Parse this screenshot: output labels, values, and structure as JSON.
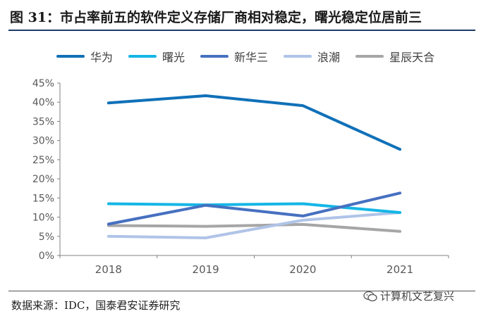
{
  "header": {
    "title": "图 31：市占率前五的软件定义存储厂商相对稳定，曙光稳定位居前三"
  },
  "footer": {
    "source": "数据来源：IDC，国泰君安证券研究",
    "watermark": "计算机文艺复兴"
  },
  "chart_data": {
    "type": "line",
    "title": "",
    "xlabel": "",
    "ylabel": "",
    "categories": [
      "2018",
      "2019",
      "2020",
      "2021"
    ],
    "ylim": [
      0,
      45
    ],
    "yticks": [
      0,
      5,
      10,
      15,
      20,
      25,
      30,
      35,
      40,
      45
    ],
    "ytick_labels": [
      "0%",
      "5%",
      "10%",
      "15%",
      "20%",
      "25%",
      "30%",
      "35%",
      "40%",
      "45%"
    ],
    "legend_position": "top",
    "grid": false,
    "series": [
      {
        "name": "华为",
        "color": "#1070B8",
        "values": [
          39.8,
          41.7,
          39.1,
          27.7
        ]
      },
      {
        "name": "曙光",
        "color": "#15B6E6",
        "values": [
          13.5,
          13.2,
          13.5,
          11.2
        ]
      },
      {
        "name": "新华三",
        "color": "#4670C0",
        "values": [
          8.2,
          13.1,
          10.3,
          16.3
        ]
      },
      {
        "name": "浪潮",
        "color": "#B0C4E8",
        "values": [
          5.0,
          4.6,
          9.2,
          11.2
        ]
      },
      {
        "name": "星辰天合",
        "color": "#A6A6A6",
        "values": [
          7.8,
          7.6,
          8.1,
          6.3
        ]
      }
    ]
  }
}
